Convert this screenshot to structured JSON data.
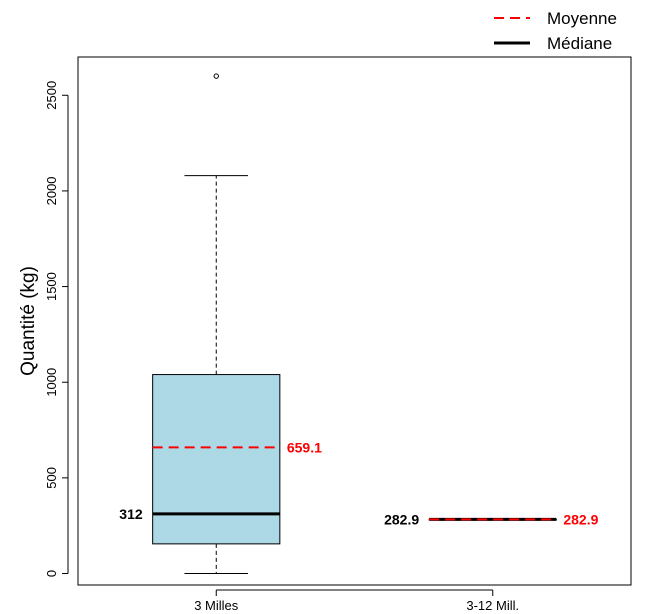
{
  "chart_data": {
    "type": "boxplot",
    "ylabel": "Quantité (kg)",
    "ylim": [
      -60,
      2700
    ],
    "yticks": [
      0,
      500,
      1000,
      1500,
      2000,
      2500
    ],
    "yticks_labels": [
      "0",
      "500",
      "1000",
      "1500",
      "2000",
      "2500"
    ],
    "grid": false,
    "legend": {
      "position": "top-right",
      "items": [
        {
          "label": "Moyenne",
          "style": "dashed",
          "color": "#ff0000"
        },
        {
          "label": "Médiane",
          "style": "solid",
          "color": "#000000"
        }
      ]
    },
    "groups": [
      {
        "category": "3 Milles",
        "whisker_low": 0,
        "q1": 155,
        "median": 312,
        "q3": 1040,
        "whisker_high": 2080,
        "outliers": [
          2600
        ],
        "mean": 659.1,
        "median_label": "312",
        "mean_label": "659.1",
        "box_color": "#add8e6"
      },
      {
        "category": "3-12 Mill.",
        "whisker_low": 282.9,
        "q1": 282.9,
        "median": 282.9,
        "q3": 282.9,
        "whisker_high": 282.9,
        "outliers": [],
        "mean": 282.9,
        "median_label": "282.9",
        "mean_label": "282.9",
        "box_color": "#add8e6"
      }
    ],
    "colors": {
      "mean": "#ff0000",
      "median": "#000000"
    }
  }
}
